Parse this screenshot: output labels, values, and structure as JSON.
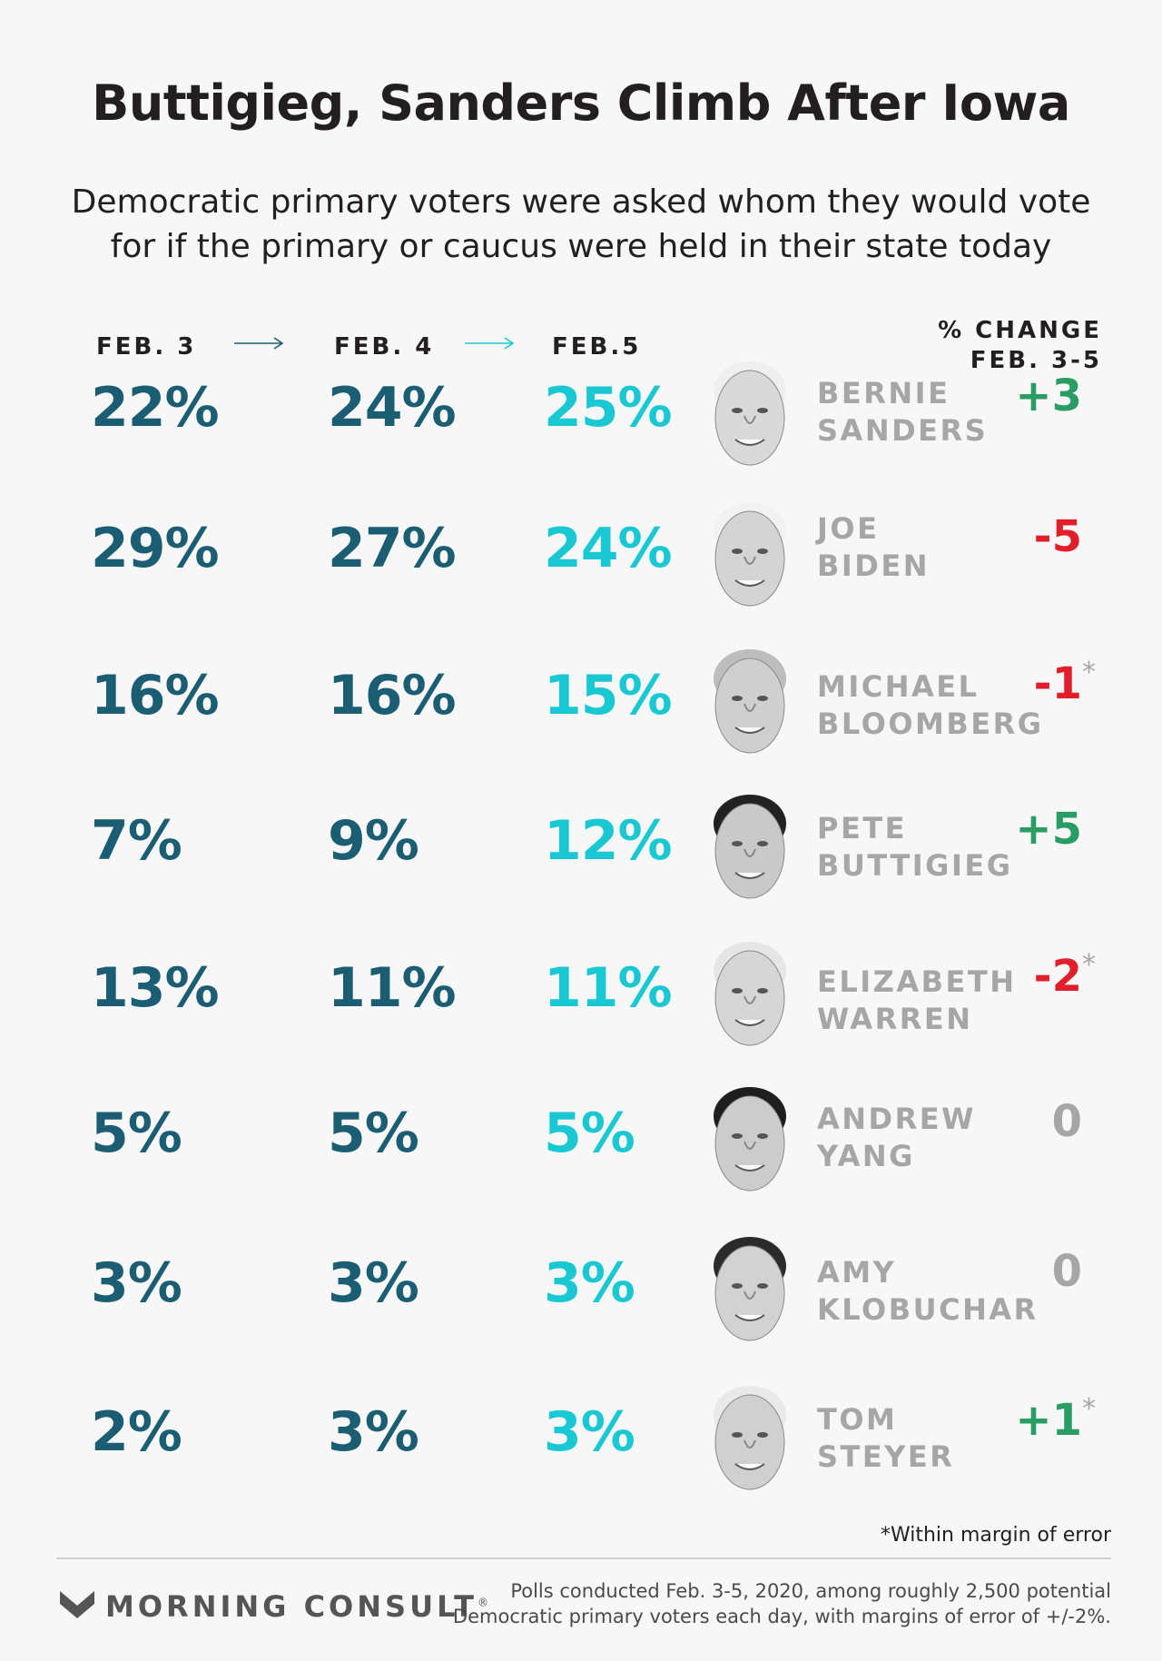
{
  "title": "Buttigieg, Sanders Climb After Iowa",
  "subtitle": "Democratic primary voters were asked whom they would vote for if the primary or caucus were held in their state today",
  "columns": [
    "FEB. 3",
    "FEB. 4",
    "FEB.5"
  ],
  "change_header": [
    "% CHANGE",
    "FEB. 3-5"
  ],
  "colors": {
    "feb3_feb4": "#1b5d73",
    "feb5": "#19c8d2",
    "positive": "#2a9d64",
    "negative": "#e01f2b",
    "zero": "#a6a6a6",
    "names": "#a6a6a6"
  },
  "rows": [
    {
      "first": "BERNIE",
      "last": "SANDERS",
      "feb3": "22%",
      "feb4": "24%",
      "feb5": "25%",
      "change": "+3",
      "moe": "",
      "sign": "pos"
    },
    {
      "first": "JOE",
      "last": "BIDEN",
      "feb3": "29%",
      "feb4": "27%",
      "feb5": "24%",
      "change": "-5",
      "moe": "",
      "sign": "neg"
    },
    {
      "first": "MICHAEL",
      "last": "BLOOMBERG",
      "feb3": "16%",
      "feb4": "16%",
      "feb5": "15%",
      "change": "-1",
      "moe": "*",
      "sign": "neg"
    },
    {
      "first": "PETE",
      "last": "BUTTIGIEG",
      "feb3": "7%",
      "feb4": "9%",
      "feb5": "12%",
      "change": "+5",
      "moe": "",
      "sign": "pos"
    },
    {
      "first": "ELIZABETH",
      "last": "WARREN",
      "feb3": "13%",
      "feb4": "11%",
      "feb5": "11%",
      "change": "-2",
      "moe": "*",
      "sign": "neg"
    },
    {
      "first": "ANDREW",
      "last": "YANG",
      "feb3": "5%",
      "feb4": "5%",
      "feb5": "5%",
      "change": "0",
      "moe": "",
      "sign": "zero"
    },
    {
      "first": "AMY",
      "last": "KLOBUCHAR",
      "feb3": "3%",
      "feb4": "3%",
      "feb5": "3%",
      "change": "0",
      "moe": "",
      "sign": "zero"
    },
    {
      "first": "TOM",
      "last": "STEYER",
      "feb3": "2%",
      "feb4": "3%",
      "feb5": "3%",
      "change": "+1",
      "moe": "*",
      "sign": "pos"
    }
  ],
  "chart_data": {
    "type": "table",
    "title": "Buttigieg, Sanders Climb After Iowa",
    "subtitle": "Democratic primary voters were asked whom they would vote for if the primary or caucus were held in their state today",
    "columns": [
      "FEB. 3",
      "FEB. 4",
      "FEB.5",
      "% CHANGE FEB. 3-5"
    ],
    "categories": [
      "BERNIE SANDERS",
      "JOE BIDEN",
      "MICHAEL BLOOMBERG",
      "PETE BUTTIGIEG",
      "ELIZABETH WARREN",
      "ANDREW YANG",
      "AMY KLOBUCHAR",
      "TOM STEYER"
    ],
    "series": [
      {
        "name": "FEB. 3",
        "values": [
          22,
          29,
          16,
          7,
          13,
          5,
          3,
          2
        ]
      },
      {
        "name": "FEB. 4",
        "values": [
          24,
          27,
          16,
          9,
          11,
          5,
          3,
          3
        ]
      },
      {
        "name": "FEB.5",
        "values": [
          25,
          24,
          15,
          12,
          11,
          5,
          3,
          3
        ]
      },
      {
        "name": "% CHANGE FEB. 3-5",
        "values": [
          3,
          -5,
          -1,
          5,
          -2,
          0,
          0,
          1
        ]
      }
    ],
    "within_margin_of_error": [
      false,
      false,
      true,
      false,
      true,
      false,
      false,
      true
    ]
  },
  "footnote": "*Within margin of error",
  "brand": "MORNING CONSULT",
  "brand_mark": "®",
  "methodology": [
    "Polls conducted Feb. 3-5, 2020, among roughly 2,500 potential",
    "Democratic primary voters each day, with margins of error of +/-2%."
  ]
}
